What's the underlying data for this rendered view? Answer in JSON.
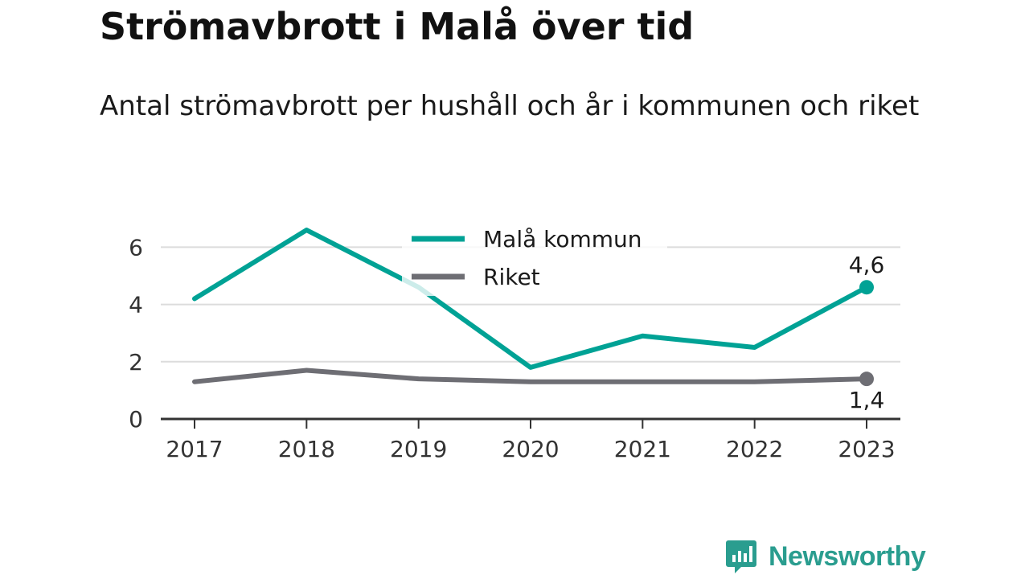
{
  "chart_data": {
    "type": "line",
    "title": "Strömavbrott i Malå över tid",
    "subtitle": "Antal strömavbrott per hushåll och år i kommunen och riket",
    "x": [
      "2017",
      "2018",
      "2019",
      "2020",
      "2021",
      "2022",
      "2023"
    ],
    "yticks": [
      "0",
      "2",
      "4",
      "6"
    ],
    "ylim": [
      0,
      6.6
    ],
    "grid": true,
    "legend_position": "top-center",
    "series": [
      {
        "name": "Malå kommun",
        "color": "#00a295",
        "values": [
          4.2,
          6.6,
          4.6,
          1.8,
          2.9,
          2.5,
          4.6
        ],
        "end_label": "4,6"
      },
      {
        "name": "Riket",
        "color": "#6e6e74",
        "values": [
          1.3,
          1.7,
          1.4,
          1.3,
          1.3,
          1.3,
          1.4
        ],
        "end_label": "1,4"
      }
    ]
  },
  "brand": {
    "name": "Newsworthy",
    "color": "#2a9d8f",
    "icon": "newsworthy-logo-icon"
  }
}
